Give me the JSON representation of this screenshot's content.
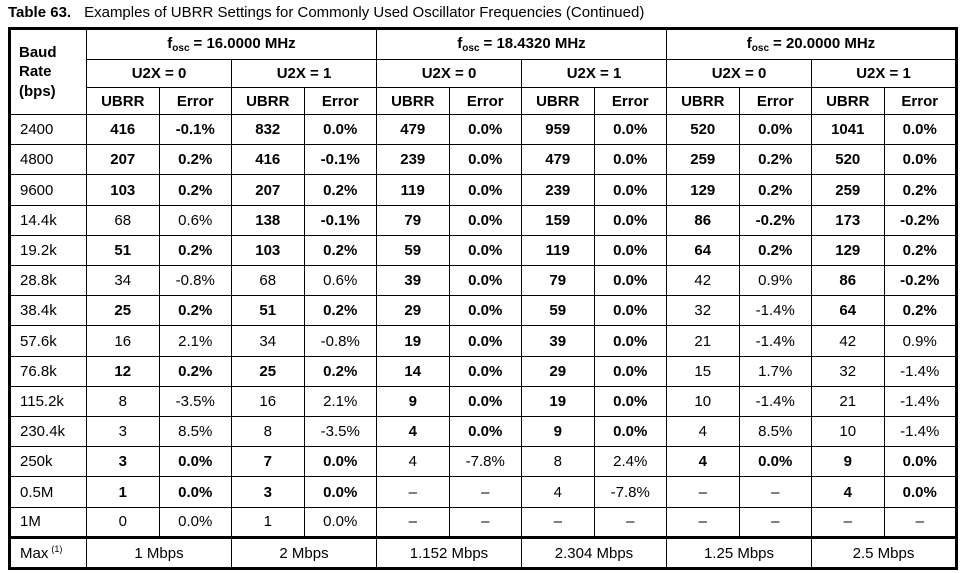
{
  "title": {
    "prefix": "Table 63.",
    "text": "Examples of UBRR Settings for Commonly Used Oscillator Frequencies (Continued)"
  },
  "header": {
    "baud_line1": "Baud",
    "baud_line2": "Rate",
    "baud_line3": "(bps)",
    "groups": [
      {
        "f": "f",
        "sub": "osc",
        "eq": "= 16.0000 MHz"
      },
      {
        "f": "f",
        "sub": "osc",
        "eq": "= 18.4320 MHz"
      },
      {
        "f": "f",
        "sub": "osc",
        "eq": "= 20.0000 MHz"
      }
    ],
    "u2x0": "U2X = 0",
    "u2x1": "U2X = 1",
    "ubrr": "UBRR",
    "error": "Error"
  },
  "rows": [
    {
      "baud": "2400",
      "cells": [
        {
          "v": "416",
          "b": true
        },
        {
          "v": "-0.1%",
          "b": true
        },
        {
          "v": "832",
          "b": true
        },
        {
          "v": "0.0%",
          "b": true
        },
        {
          "v": "479",
          "b": true
        },
        {
          "v": "0.0%",
          "b": true
        },
        {
          "v": "959",
          "b": true
        },
        {
          "v": "0.0%",
          "b": true
        },
        {
          "v": "520",
          "b": true
        },
        {
          "v": "0.0%",
          "b": true
        },
        {
          "v": "1041",
          "b": true
        },
        {
          "v": "0.0%",
          "b": true
        }
      ]
    },
    {
      "baud": "4800",
      "cells": [
        {
          "v": "207",
          "b": true
        },
        {
          "v": "0.2%",
          "b": true
        },
        {
          "v": "416",
          "b": true
        },
        {
          "v": "-0.1%",
          "b": true
        },
        {
          "v": "239",
          "b": true
        },
        {
          "v": "0.0%",
          "b": true
        },
        {
          "v": "479",
          "b": true
        },
        {
          "v": "0.0%",
          "b": true
        },
        {
          "v": "259",
          "b": true
        },
        {
          "v": "0.2%",
          "b": true
        },
        {
          "v": "520",
          "b": true
        },
        {
          "v": "0.0%",
          "b": true
        }
      ]
    },
    {
      "baud": "9600",
      "cells": [
        {
          "v": "103",
          "b": true
        },
        {
          "v": "0.2%",
          "b": true
        },
        {
          "v": "207",
          "b": true
        },
        {
          "v": "0.2%",
          "b": true
        },
        {
          "v": "119",
          "b": true
        },
        {
          "v": "0.0%",
          "b": true
        },
        {
          "v": "239",
          "b": true
        },
        {
          "v": "0.0%",
          "b": true
        },
        {
          "v": "129",
          "b": true
        },
        {
          "v": "0.2%",
          "b": true
        },
        {
          "v": "259",
          "b": true
        },
        {
          "v": "0.2%",
          "b": true
        }
      ]
    },
    {
      "baud": "14.4k",
      "cells": [
        {
          "v": "68",
          "b": false
        },
        {
          "v": "0.6%",
          "b": false
        },
        {
          "v": "138",
          "b": true
        },
        {
          "v": "-0.1%",
          "b": true
        },
        {
          "v": "79",
          "b": true
        },
        {
          "v": "0.0%",
          "b": true
        },
        {
          "v": "159",
          "b": true
        },
        {
          "v": "0.0%",
          "b": true
        },
        {
          "v": "86",
          "b": true
        },
        {
          "v": "-0.2%",
          "b": true
        },
        {
          "v": "173",
          "b": true
        },
        {
          "v": "-0.2%",
          "b": true
        }
      ]
    },
    {
      "baud": "19.2k",
      "cells": [
        {
          "v": "51",
          "b": true
        },
        {
          "v": "0.2%",
          "b": true
        },
        {
          "v": "103",
          "b": true
        },
        {
          "v": "0.2%",
          "b": true
        },
        {
          "v": "59",
          "b": true
        },
        {
          "v": "0.0%",
          "b": true
        },
        {
          "v": "119",
          "b": true
        },
        {
          "v": "0.0%",
          "b": true
        },
        {
          "v": "64",
          "b": true
        },
        {
          "v": "0.2%",
          "b": true
        },
        {
          "v": "129",
          "b": true
        },
        {
          "v": "0.2%",
          "b": true
        }
      ]
    },
    {
      "baud": "28.8k",
      "cells": [
        {
          "v": "34",
          "b": false
        },
        {
          "v": "-0.8%",
          "b": false
        },
        {
          "v": "68",
          "b": false
        },
        {
          "v": "0.6%",
          "b": false
        },
        {
          "v": "39",
          "b": true
        },
        {
          "v": "0.0%",
          "b": true
        },
        {
          "v": "79",
          "b": true
        },
        {
          "v": "0.0%",
          "b": true
        },
        {
          "v": "42",
          "b": false
        },
        {
          "v": "0.9%",
          "b": false
        },
        {
          "v": "86",
          "b": true
        },
        {
          "v": "-0.2%",
          "b": true
        }
      ]
    },
    {
      "baud": "38.4k",
      "cells": [
        {
          "v": "25",
          "b": true
        },
        {
          "v": "0.2%",
          "b": true
        },
        {
          "v": "51",
          "b": true
        },
        {
          "v": "0.2%",
          "b": true
        },
        {
          "v": "29",
          "b": true
        },
        {
          "v": "0.0%",
          "b": true
        },
        {
          "v": "59",
          "b": true
        },
        {
          "v": "0.0%",
          "b": true
        },
        {
          "v": "32",
          "b": false
        },
        {
          "v": "-1.4%",
          "b": false
        },
        {
          "v": "64",
          "b": true
        },
        {
          "v": "0.2%",
          "b": true
        }
      ]
    },
    {
      "baud": "57.6k",
      "cells": [
        {
          "v": "16",
          "b": false
        },
        {
          "v": "2.1%",
          "b": false
        },
        {
          "v": "34",
          "b": false
        },
        {
          "v": "-0.8%",
          "b": false
        },
        {
          "v": "19",
          "b": true
        },
        {
          "v": "0.0%",
          "b": true
        },
        {
          "v": "39",
          "b": true
        },
        {
          "v": "0.0%",
          "b": true
        },
        {
          "v": "21",
          "b": false
        },
        {
          "v": "-1.4%",
          "b": false
        },
        {
          "v": "42",
          "b": false
        },
        {
          "v": "0.9%",
          "b": false
        }
      ]
    },
    {
      "baud": "76.8k",
      "cells": [
        {
          "v": "12",
          "b": true
        },
        {
          "v": "0.2%",
          "b": true
        },
        {
          "v": "25",
          "b": true
        },
        {
          "v": "0.2%",
          "b": true
        },
        {
          "v": "14",
          "b": true
        },
        {
          "v": "0.0%",
          "b": true
        },
        {
          "v": "29",
          "b": true
        },
        {
          "v": "0.0%",
          "b": true
        },
        {
          "v": "15",
          "b": false
        },
        {
          "v": "1.7%",
          "b": false
        },
        {
          "v": "32",
          "b": false
        },
        {
          "v": "-1.4%",
          "b": false
        }
      ]
    },
    {
      "baud": "115.2k",
      "cells": [
        {
          "v": "8",
          "b": false
        },
        {
          "v": "-3.5%",
          "b": false
        },
        {
          "v": "16",
          "b": false
        },
        {
          "v": "2.1%",
          "b": false
        },
        {
          "v": "9",
          "b": true
        },
        {
          "v": "0.0%",
          "b": true
        },
        {
          "v": "19",
          "b": true
        },
        {
          "v": "0.0%",
          "b": true
        },
        {
          "v": "10",
          "b": false
        },
        {
          "v": "-1.4%",
          "b": false
        },
        {
          "v": "21",
          "b": false
        },
        {
          "v": "-1.4%",
          "b": false
        }
      ]
    },
    {
      "baud": "230.4k",
      "cells": [
        {
          "v": "3",
          "b": false
        },
        {
          "v": "8.5%",
          "b": false
        },
        {
          "v": "8",
          "b": false
        },
        {
          "v": "-3.5%",
          "b": false
        },
        {
          "v": "4",
          "b": true
        },
        {
          "v": "0.0%",
          "b": true
        },
        {
          "v": "9",
          "b": true
        },
        {
          "v": "0.0%",
          "b": true
        },
        {
          "v": "4",
          "b": false
        },
        {
          "v": "8.5%",
          "b": false
        },
        {
          "v": "10",
          "b": false
        },
        {
          "v": "-1.4%",
          "b": false
        }
      ]
    },
    {
      "baud": "250k",
      "cells": [
        {
          "v": "3",
          "b": true
        },
        {
          "v": "0.0%",
          "b": true
        },
        {
          "v": "7",
          "b": true
        },
        {
          "v": "0.0%",
          "b": true
        },
        {
          "v": "4",
          "b": false
        },
        {
          "v": "-7.8%",
          "b": false
        },
        {
          "v": "8",
          "b": false
        },
        {
          "v": "2.4%",
          "b": false
        },
        {
          "v": "4",
          "b": true
        },
        {
          "v": "0.0%",
          "b": true
        },
        {
          "v": "9",
          "b": true
        },
        {
          "v": "0.0%",
          "b": true
        }
      ]
    },
    {
      "baud": "0.5M",
      "cells": [
        {
          "v": "1",
          "b": true
        },
        {
          "v": "0.0%",
          "b": true
        },
        {
          "v": "3",
          "b": true
        },
        {
          "v": "0.0%",
          "b": true
        },
        {
          "v": "–",
          "b": false
        },
        {
          "v": "–",
          "b": false
        },
        {
          "v": "4",
          "b": false
        },
        {
          "v": "-7.8%",
          "b": false
        },
        {
          "v": "–",
          "b": false
        },
        {
          "v": "–",
          "b": false
        },
        {
          "v": "4",
          "b": true
        },
        {
          "v": "0.0%",
          "b": true
        }
      ]
    },
    {
      "baud": "1M",
      "cells": [
        {
          "v": "0",
          "b": false
        },
        {
          "v": "0.0%",
          "b": false
        },
        {
          "v": "1",
          "b": false
        },
        {
          "v": "0.0%",
          "b": false
        },
        {
          "v": "–",
          "b": false
        },
        {
          "v": "–",
          "b": false
        },
        {
          "v": "–",
          "b": false
        },
        {
          "v": "–",
          "b": false
        },
        {
          "v": "–",
          "b": false
        },
        {
          "v": "–",
          "b": false
        },
        {
          "v": "–",
          "b": false
        },
        {
          "v": "–",
          "b": false
        }
      ]
    }
  ],
  "max_row": {
    "label": "Max",
    "sup": "(1)",
    "values": [
      "1 Mbps",
      "2 Mbps",
      "1.152 Mbps",
      "2.304 Mbps",
      "1.25 Mbps",
      "2.5 Mbps"
    ]
  },
  "colors": {
    "text": "#000000",
    "border": "#000000",
    "background": "#ffffff"
  }
}
